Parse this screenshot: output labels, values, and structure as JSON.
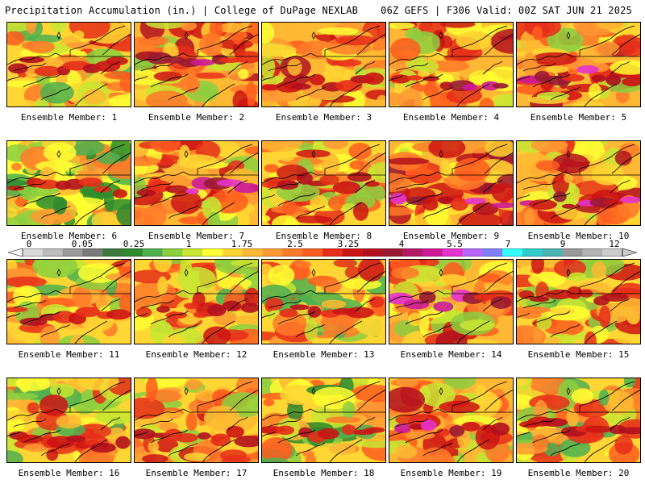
{
  "header": {
    "left_title": "Precipitation Accumulation (in.) | College of DuPage NEXLAB",
    "right_title": "06Z GEFS | F306 Valid: 00Z SAT JUN 21 2025"
  },
  "panels": [
    {
      "label": "Ensemble Member: 1",
      "seed": 11,
      "wet": 0.55
    },
    {
      "label": "Ensemble Member: 2",
      "seed": 23,
      "wet": 0.62
    },
    {
      "label": "Ensemble Member: 3",
      "seed": 37,
      "wet": 0.6
    },
    {
      "label": "Ensemble Member: 4",
      "seed": 41,
      "wet": 0.62
    },
    {
      "label": "Ensemble Member: 5",
      "seed": 53,
      "wet": 0.65
    },
    {
      "label": "Ensemble Member: 6",
      "seed": 67,
      "wet": 0.35
    },
    {
      "label": "Ensemble Member: 7",
      "seed": 71,
      "wet": 0.62
    },
    {
      "label": "Ensemble Member: 8",
      "seed": 83,
      "wet": 0.58
    },
    {
      "label": "Ensemble Member: 9",
      "seed": 97,
      "wet": 0.7
    },
    {
      "label": "Ensemble Member: 10",
      "seed": 101,
      "wet": 0.66
    },
    {
      "label": "Ensemble Member: 11",
      "seed": 113,
      "wet": 0.55
    },
    {
      "label": "Ensemble Member: 12",
      "seed": 127,
      "wet": 0.58
    },
    {
      "label": "Ensemble Member: 13",
      "seed": 131,
      "wet": 0.52
    },
    {
      "label": "Ensemble Member: 14",
      "seed": 149,
      "wet": 0.62
    },
    {
      "label": "Ensemble Member: 15",
      "seed": 157,
      "wet": 0.55
    },
    {
      "label": "Ensemble Member: 16",
      "seed": 163,
      "wet": 0.52
    },
    {
      "label": "Ensemble Member: 17",
      "seed": 173,
      "wet": 0.58
    },
    {
      "label": "Ensemble Member: 18",
      "seed": 181,
      "wet": 0.42
    },
    {
      "label": "Ensemble Member: 19",
      "seed": 191,
      "wet": 0.64
    },
    {
      "label": "Ensemble Member: 20",
      "seed": 199,
      "wet": 0.5
    }
  ],
  "colorbar": {
    "labels": [
      "0",
      "0.05",
      "0.25",
      "1",
      "1.75",
      "2.5",
      "3.25",
      "4",
      "5.5",
      "7",
      "9",
      "12"
    ],
    "colors": [
      "#d9d9d9",
      "#bdbdbd",
      "#9a9a9a",
      "#7a7a7a",
      "#3d7a3d",
      "#2e8b2e",
      "#4fb04f",
      "#8ccf3f",
      "#c8e632",
      "#ffff33",
      "#ffd633",
      "#ffb833",
      "#ff9933",
      "#ff7a29",
      "#ff5c1f",
      "#e62e1a",
      "#cc1414",
      "#b3101e",
      "#991933",
      "#b31a66",
      "#cc1a99",
      "#e633cc",
      "#b866ff",
      "#8080ff",
      "#33ffff",
      "#33cccc",
      "#4db3b3",
      "#999999",
      "#b3b3b3",
      "#cccccc"
    ]
  }
}
